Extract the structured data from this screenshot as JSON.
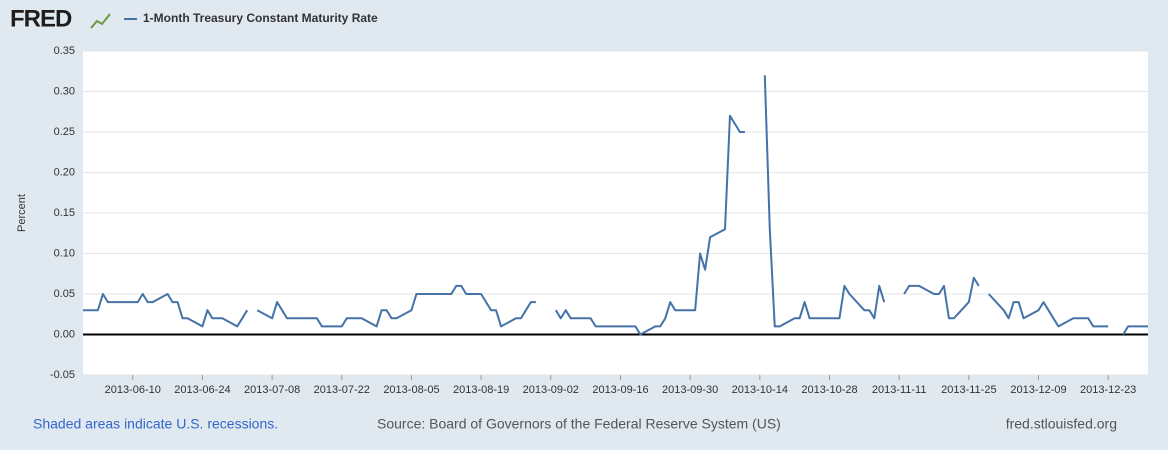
{
  "logo": "FRED",
  "footer": {
    "recessions": "Shaded areas indicate U.S. recessions.",
    "source": "Source: Board of Governors of the Federal Reserve System (US)",
    "site": "fred.stlouisfed.org"
  },
  "chart_data": {
    "type": "line",
    "ylabel": "Percent",
    "x": [
      "2013-05-31",
      "2013-06-03",
      "2013-06-04",
      "2013-06-05",
      "2013-06-06",
      "2013-06-07",
      "2013-06-10",
      "2013-06-11",
      "2013-06-12",
      "2013-06-13",
      "2013-06-14",
      "2013-06-17",
      "2013-06-18",
      "2013-06-19",
      "2013-06-20",
      "2013-06-21",
      "2013-06-24",
      "2013-06-25",
      "2013-06-26",
      "2013-06-27",
      "2013-06-28",
      "2013-07-01",
      "2013-07-02",
      "2013-07-03",
      "2013-07-04",
      "2013-07-05",
      "2013-07-08",
      "2013-07-09",
      "2013-07-10",
      "2013-07-11",
      "2013-07-12",
      "2013-07-15",
      "2013-07-16",
      "2013-07-17",
      "2013-07-18",
      "2013-07-19",
      "2013-07-22",
      "2013-07-23",
      "2013-07-24",
      "2013-07-25",
      "2013-07-26",
      "2013-07-29",
      "2013-07-30",
      "2013-07-31",
      "2013-08-01",
      "2013-08-02",
      "2013-08-05",
      "2013-08-06",
      "2013-08-07",
      "2013-08-08",
      "2013-08-09",
      "2013-08-12",
      "2013-08-13",
      "2013-08-14",
      "2013-08-15",
      "2013-08-16",
      "2013-08-19",
      "2013-08-20",
      "2013-08-21",
      "2013-08-22",
      "2013-08-23",
      "2013-08-26",
      "2013-08-27",
      "2013-08-28",
      "2013-08-29",
      "2013-08-30",
      "2013-09-02",
      "2013-09-03",
      "2013-09-04",
      "2013-09-05",
      "2013-09-06",
      "2013-09-09",
      "2013-09-10",
      "2013-09-11",
      "2013-09-12",
      "2013-09-13",
      "2013-09-16",
      "2013-09-17",
      "2013-09-18",
      "2013-09-19",
      "2013-09-20",
      "2013-09-23",
      "2013-09-24",
      "2013-09-25",
      "2013-09-26",
      "2013-09-27",
      "2013-09-30",
      "2013-10-01",
      "2013-10-02",
      "2013-10-03",
      "2013-10-04",
      "2013-10-07",
      "2013-10-08",
      "2013-10-09",
      "2013-10-10",
      "2013-10-11",
      "2013-10-14",
      "2013-10-15",
      "2013-10-16",
      "2013-10-17",
      "2013-10-18",
      "2013-10-21",
      "2013-10-22",
      "2013-10-23",
      "2013-10-24",
      "2013-10-25",
      "2013-10-28",
      "2013-10-29",
      "2013-10-30",
      "2013-10-31",
      "2013-11-01",
      "2013-11-04",
      "2013-11-05",
      "2013-11-06",
      "2013-11-07",
      "2013-11-08",
      "2013-11-11",
      "2013-11-12",
      "2013-11-13",
      "2013-11-14",
      "2013-11-15",
      "2013-11-18",
      "2013-11-19",
      "2013-11-20",
      "2013-11-21",
      "2013-11-22",
      "2013-11-25",
      "2013-11-26",
      "2013-11-27",
      "2013-11-28",
      "2013-11-29",
      "2013-12-02",
      "2013-12-03",
      "2013-12-04",
      "2013-12-05",
      "2013-12-06",
      "2013-12-09",
      "2013-12-10",
      "2013-12-11",
      "2013-12-12",
      "2013-12-13",
      "2013-12-16",
      "2013-12-17",
      "2013-12-18",
      "2013-12-19",
      "2013-12-20",
      "2013-12-23",
      "2013-12-24",
      "2013-12-26",
      "2013-12-27",
      "2013-12-30",
      "2013-12-31"
    ],
    "series": [
      {
        "name": "1-Month Treasury Constant Maturity Rate",
        "color": "#4572a7",
        "values": [
          0.03,
          0.03,
          0.05,
          0.04,
          0.04,
          0.04,
          0.04,
          0.04,
          0.05,
          0.04,
          0.04,
          0.05,
          0.04,
          0.04,
          0.02,
          0.02,
          0.01,
          0.03,
          0.02,
          0.02,
          0.02,
          0.01,
          0.02,
          0.03,
          null,
          0.03,
          0.02,
          0.04,
          0.03,
          0.02,
          0.02,
          0.02,
          0.02,
          0.02,
          0.01,
          0.01,
          0.01,
          0.02,
          0.02,
          0.02,
          0.02,
          0.01,
          0.03,
          0.03,
          0.02,
          0.02,
          0.03,
          0.05,
          0.05,
          0.05,
          0.05,
          0.05,
          0.05,
          0.06,
          0.06,
          0.05,
          0.05,
          0.04,
          0.03,
          0.03,
          0.01,
          0.02,
          0.02,
          0.03,
          0.04,
          0.04,
          null,
          0.03,
          0.02,
          0.03,
          0.02,
          0.02,
          0.02,
          0.01,
          0.01,
          0.01,
          0.01,
          0.01,
          0.01,
          0.01,
          0,
          0.01,
          0.01,
          0.02,
          0.04,
          0.03,
          0.03,
          0.03,
          0.1,
          0.08,
          0.12,
          0.13,
          0.27,
          0.26,
          0.25,
          0.25,
          null,
          0.32,
          0.13,
          0.01,
          0.01,
          0.02,
          0.02,
          0.04,
          0.02,
          0.02,
          0.02,
          0.02,
          0.02,
          0.06,
          0.05,
          0.03,
          0.03,
          0.02,
          0.06,
          0.04,
          null,
          0.05,
          0.06,
          0.06,
          0.06,
          0.05,
          0.05,
          0.06,
          0.02,
          0.02,
          0.04,
          0.07,
          0.06,
          null,
          0.05,
          0.03,
          0.02,
          0.04,
          0.04,
          0.02,
          0.03,
          0.04,
          0.03,
          0.02,
          0.01,
          0.02,
          0.02,
          0.02,
          0.02,
          0.01,
          0.01,
          null,
          0,
          0.01,
          0.01,
          0.01
        ]
      }
    ],
    "xlim": [
      "2013-05-31",
      "2013-12-31"
    ],
    "xticks": [
      "2013-06-10",
      "2013-06-24",
      "2013-07-08",
      "2013-07-22",
      "2013-08-05",
      "2013-08-19",
      "2013-09-02",
      "2013-09-16",
      "2013-09-30",
      "2013-10-14",
      "2013-10-28",
      "2013-11-11",
      "2013-11-25",
      "2013-12-09",
      "2013-12-23"
    ],
    "ylim": [
      -0.05,
      0.35
    ],
    "yticks": [
      -0.05,
      {
        "value": 0,
        "label": "0.00"
      },
      0.05,
      {
        "value": 0.1,
        "label": "0.10"
      },
      0.15,
      {
        "value": 0.2,
        "label": "0.20"
      },
      0.25,
      {
        "value": 0.3,
        "label": "0.30"
      },
      0.35
    ],
    "grid": true
  }
}
